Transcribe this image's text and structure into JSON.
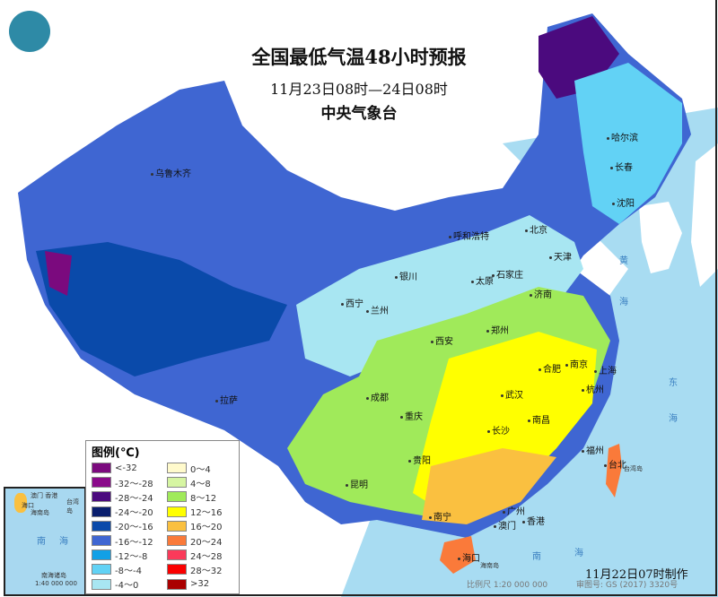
{
  "header": {
    "title": "全国最低气温48小时预报",
    "period": "11月23日08时—24日08时",
    "issuer": "中央气象台"
  },
  "logo": {
    "icon": "cma-logo"
  },
  "legend": {
    "title": "图例(℃)",
    "items": [
      {
        "label": "<-32",
        "color": "#7b0a7e"
      },
      {
        "label": "-32～-28",
        "color": "#8a0a8a"
      },
      {
        "label": "-28～-24",
        "color": "#4b0a7e"
      },
      {
        "label": "-24～-20",
        "color": "#0a1f6e"
      },
      {
        "label": "-20～-16",
        "color": "#0a4aaa"
      },
      {
        "label": "-16～-12",
        "color": "#3f66d2"
      },
      {
        "label": "-12～-8",
        "color": "#12a0e6"
      },
      {
        "label": "-8～-4",
        "color": "#62d2f5"
      },
      {
        "label": "-4～0",
        "color": "#a8e6f2"
      },
      {
        "label": "0～4",
        "color": "#fffacc"
      },
      {
        "label": "4～8",
        "color": "#d6f5a2"
      },
      {
        "label": "8～12",
        "color": "#a0ea5a"
      },
      {
        "label": "12～16",
        "color": "#ffff00"
      },
      {
        "label": "16～20",
        "color": "#fac040"
      },
      {
        "label": "20～24",
        "color": "#fa7a3a"
      },
      {
        "label": "24～28",
        "color": "#fa3a5a"
      },
      {
        "label": "28～32",
        "color": "#fa0000"
      },
      {
        "label": ">32",
        "color": "#aa0000"
      }
    ]
  },
  "cities": [
    "乌鲁木齐",
    "哈尔滨",
    "长春",
    "沈阳",
    "呼和浩特",
    "北京",
    "天津",
    "银川",
    "石家庄",
    "太原",
    "济南",
    "西宁",
    "兰州",
    "郑州",
    "西安",
    "合肥",
    "南京",
    "上海",
    "成都",
    "武汉",
    "杭州",
    "拉萨",
    "重庆",
    "长沙",
    "南昌",
    "福州",
    "台北",
    "贵阳",
    "昆明",
    "南宁",
    "广州",
    "澳门",
    "香港",
    "海口"
  ],
  "islands": {
    "taiwan": "台湾岛",
    "hainan": "海南岛"
  },
  "seas": {
    "yellow_1": "黄",
    "yellow_2": "海",
    "east_1": "东",
    "east_2": "海",
    "south_1": "南",
    "south_2": "海"
  },
  "inset": {
    "sea_1": "南",
    "sea_2": "海",
    "islands": "南海诸岛",
    "scale": "1:40 000 000",
    "hk_mo": "澳门 香港",
    "taiwan": "台湾岛",
    "haikou": "海口",
    "hainan": "海南岛"
  },
  "footer": {
    "made": "11月22日07时制作",
    "scale": "比例尺 1:20 000 000",
    "approval": "审图号: GS (2017) 3320号"
  }
}
